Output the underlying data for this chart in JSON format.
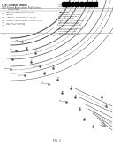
{
  "page_bg": "#ffffff",
  "diagram_bg": "#ffffff",
  "barcode_color": "#000000",
  "line_color": "#555555",
  "text_color": "#333333",
  "header_line_color": "#999999",
  "diagram_color": "#555555",
  "label_color": "#444444",
  "fig_label": "FIG. 1"
}
